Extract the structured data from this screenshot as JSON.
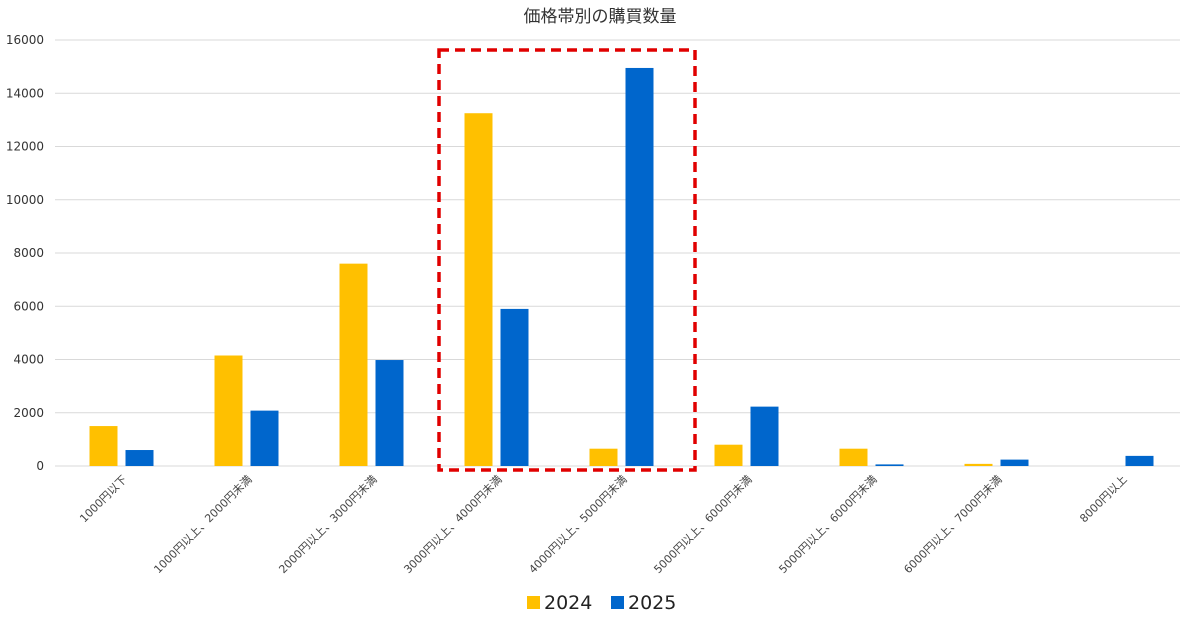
{
  "chart_data": {
    "type": "bar",
    "title": "価格帯別の購買数量",
    "xlabel": "",
    "ylabel": "",
    "ylim": [
      0,
      16000
    ],
    "yticks": [
      0,
      2000,
      4000,
      6000,
      8000,
      10000,
      12000,
      14000,
      16000
    ],
    "grid": true,
    "legend_position": "bottom-center",
    "categories": [
      "1000円以下",
      "1000円以上、2000円未満",
      "2000円以上、3000円未満",
      "3000円以上、4000円未満",
      "4000円以上、5000円未満",
      "5000円以上、6000円未満",
      "5000円以上、6000円未満",
      "6000円以上、7000円未満",
      "8000円以上"
    ],
    "series": [
      {
        "name": "2024",
        "color": "#FFC000",
        "values": [
          1500,
          4150,
          7600,
          13250,
          650,
          800,
          650,
          80,
          0
        ]
      },
      {
        "name": "2025",
        "color": "#0066CC",
        "values": [
          600,
          2080,
          3980,
          5900,
          14950,
          2230,
          60,
          240,
          380
        ]
      }
    ],
    "highlight": {
      "categories": [
        3,
        4
      ],
      "color": "#E00000",
      "style": "dashed"
    }
  }
}
